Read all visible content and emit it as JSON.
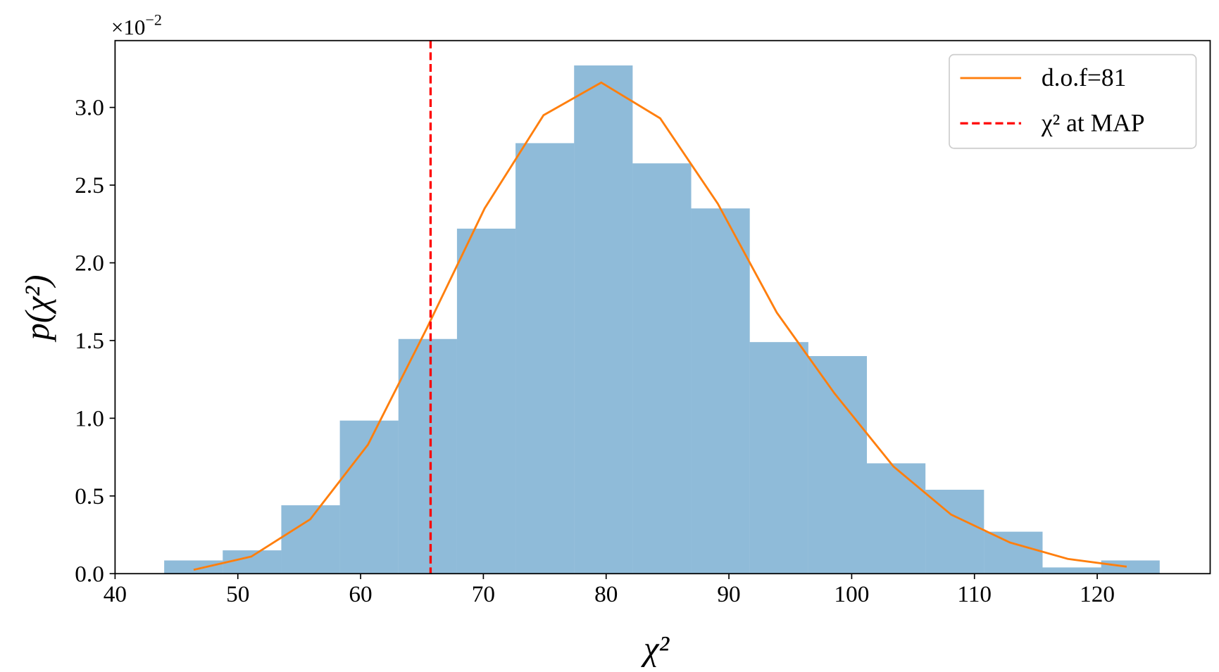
{
  "chart_data": {
    "type": "histogram",
    "xlabel": "χ²",
    "ylabel": "p(χ²)",
    "y_offset_label": {
      "base": "×10",
      "exponent": "−2"
    },
    "bins": [
      44.0,
      48.77,
      53.54,
      58.31,
      63.08,
      67.85,
      72.62,
      77.39,
      82.16,
      86.93,
      91.7,
      96.47,
      101.24,
      106.01,
      110.78,
      115.55,
      120.32,
      125.09
    ],
    "values": [
      0.085,
      0.15,
      0.44,
      0.985,
      1.51,
      2.22,
      2.77,
      3.27,
      2.64,
      2.35,
      1.49,
      1.4,
      0.71,
      0.54,
      0.27,
      0.04,
      0.085
    ],
    "color": "#1f77b4",
    "series": [
      {
        "name": "d.o.f=81",
        "color": "#ff7f0e",
        "x": [
          46.4,
          51.1,
          55.9,
          60.6,
          65.4,
          70.1,
          74.9,
          79.6,
          84.4,
          89.1,
          93.9,
          98.6,
          103.4,
          108.1,
          112.9,
          117.6,
          122.4
        ],
        "values": [
          0.025,
          0.11,
          0.35,
          0.83,
          1.58,
          2.35,
          2.95,
          3.16,
          2.93,
          2.38,
          1.68,
          1.16,
          0.69,
          0.38,
          0.2,
          0.095,
          0.045
        ]
      }
    ],
    "vline": {
      "name": "χ² at MAP",
      "x": 65.7,
      "color": "#ff0000",
      "dashed": true
    },
    "xlim": [
      40,
      129.2
    ],
    "ylim": [
      0,
      3.43
    ],
    "xticks": [
      40,
      50,
      60,
      70,
      80,
      90,
      100,
      110,
      120
    ],
    "yticks": [
      {
        "value": 0,
        "label": "0.0"
      },
      0.5,
      {
        "value": 1,
        "label": "1.0"
      },
      1.5,
      {
        "value": 2,
        "label": "2.0"
      },
      2.5,
      {
        "value": 3,
        "label": "3.0"
      }
    ],
    "legend": "upper right"
  }
}
